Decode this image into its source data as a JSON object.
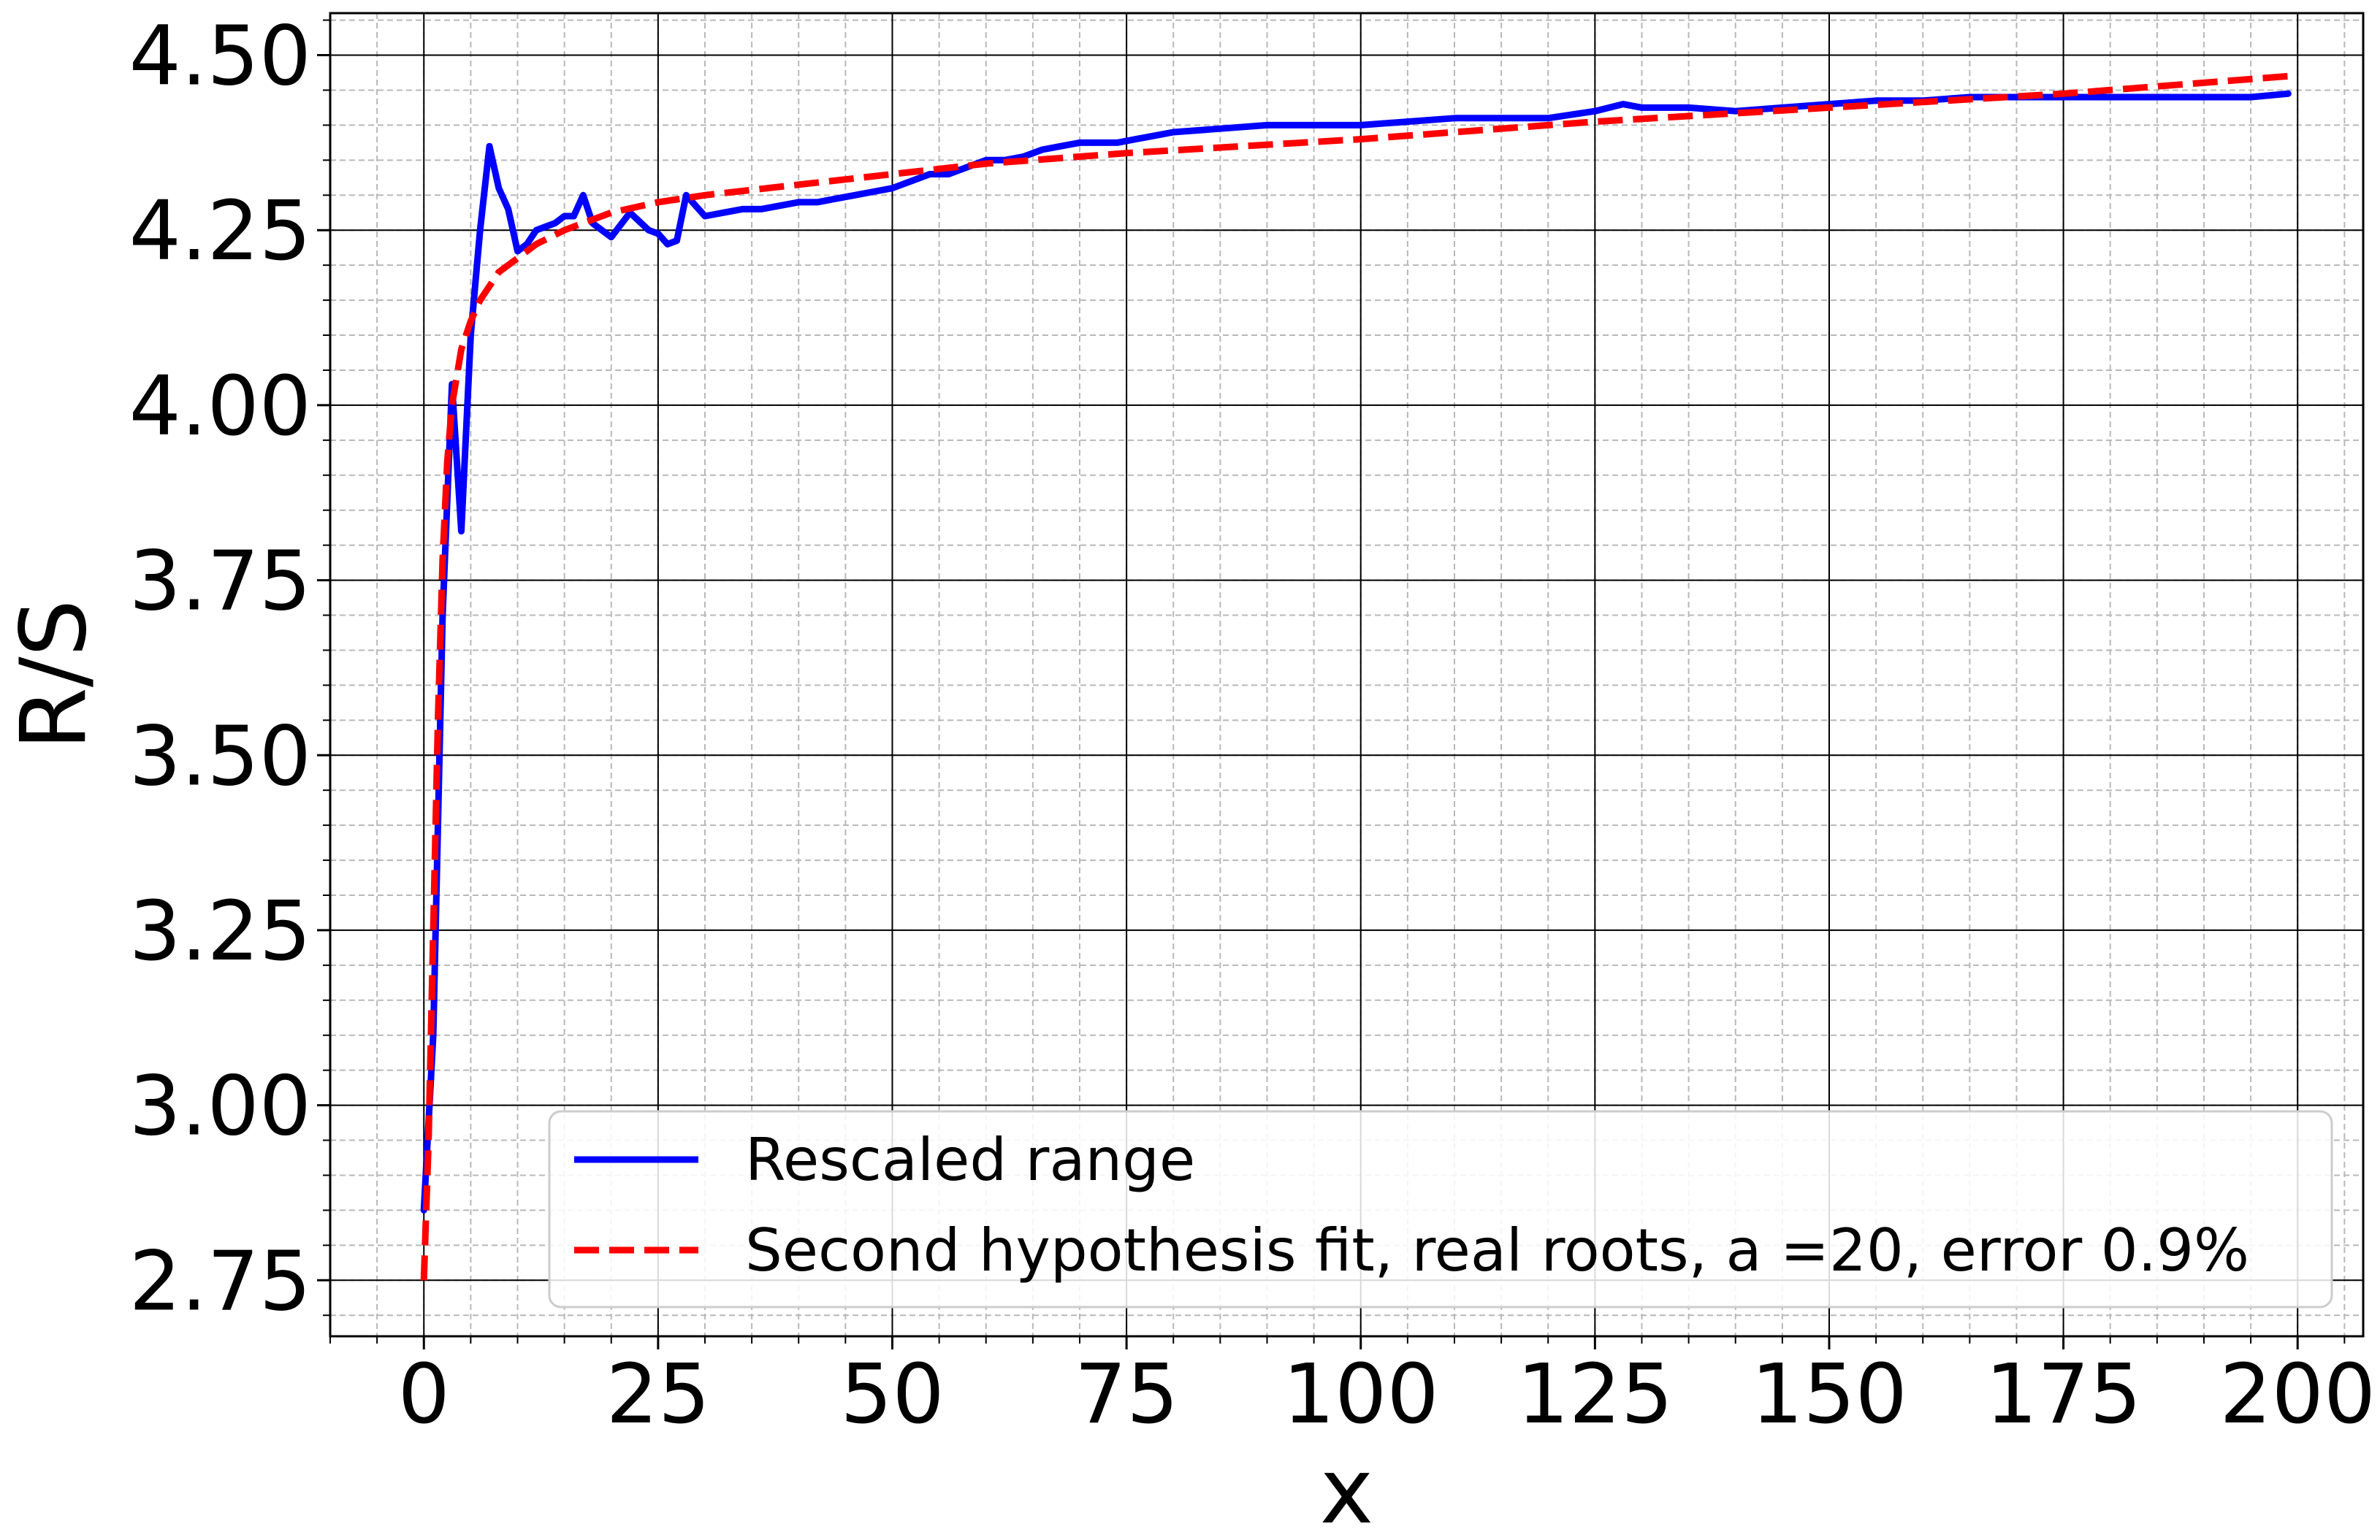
{
  "chart_data": {
    "type": "line",
    "title": "",
    "xlabel": "x",
    "ylabel": "R/S",
    "xlim": [
      -10,
      207
    ],
    "ylim": [
      2.67,
      4.56
    ],
    "xticks": [
      0,
      25,
      50,
      75,
      100,
      125,
      150,
      175,
      200
    ],
    "xtick_labels": [
      "0",
      "25",
      "50",
      "75",
      "100",
      "125",
      "150",
      "175",
      "200"
    ],
    "yticks": [
      2.75,
      3.0,
      3.25,
      3.5,
      3.75,
      4.0,
      4.25,
      4.5
    ],
    "ytick_labels": [
      "2.75",
      "3.00",
      "3.25",
      "3.50",
      "3.75",
      "4.00",
      "4.25",
      "4.50"
    ],
    "grid": "major and minor",
    "legend_position": "lower-right",
    "series": [
      {
        "name": "Rescaled range",
        "color": "#0000ff",
        "style": "solid",
        "x": [
          0,
          1,
          2,
          3,
          4,
          5,
          6,
          7,
          8,
          9,
          10,
          11,
          12,
          13,
          14,
          15,
          16,
          17,
          18,
          20,
          22,
          24,
          25,
          26,
          27,
          28,
          30,
          32,
          34,
          36,
          38,
          40,
          42,
          44,
          46,
          48,
          50,
          52,
          54,
          56,
          58,
          60,
          62,
          64,
          66,
          68,
          70,
          72,
          74,
          76,
          78,
          80,
          85,
          90,
          95,
          100,
          105,
          110,
          115,
          120,
          125,
          128,
          130,
          135,
          140,
          145,
          150,
          155,
          160,
          165,
          170,
          175,
          180,
          185,
          190,
          195,
          199
        ],
        "values": [
          2.85,
          3.1,
          3.7,
          4.03,
          3.82,
          4.1,
          4.25,
          4.37,
          4.31,
          4.28,
          4.22,
          4.23,
          4.25,
          4.255,
          4.26,
          4.27,
          4.27,
          4.3,
          4.26,
          4.24,
          4.275,
          4.25,
          4.245,
          4.23,
          4.235,
          4.3,
          4.27,
          4.275,
          4.28,
          4.28,
          4.285,
          4.29,
          4.29,
          4.295,
          4.3,
          4.305,
          4.31,
          4.32,
          4.33,
          4.33,
          4.34,
          4.35,
          4.35,
          4.355,
          4.365,
          4.37,
          4.375,
          4.375,
          4.375,
          4.38,
          4.385,
          4.39,
          4.395,
          4.4,
          4.4,
          4.4,
          4.405,
          4.41,
          4.41,
          4.41,
          4.42,
          4.43,
          4.425,
          4.425,
          4.42,
          4.425,
          4.43,
          4.435,
          4.435,
          4.44,
          4.44,
          4.44,
          4.44,
          4.44,
          4.44,
          4.44,
          4.445
        ]
      },
      {
        "name": "Second hypothesis fit, real roots, a =20, error 0.9%",
        "color": "#ff0000",
        "style": "dashed",
        "x": [
          0,
          0.5,
          1,
          1.5,
          2,
          2.5,
          3,
          4,
          5,
          6,
          7,
          8,
          10,
          12,
          15,
          20,
          25,
          30,
          40,
          50,
          60,
          75,
          100,
          125,
          150,
          175,
          199
        ],
        "values": [
          2.75,
          2.95,
          3.25,
          3.55,
          3.78,
          3.92,
          4.0,
          4.08,
          4.12,
          4.15,
          4.17,
          4.19,
          4.21,
          4.23,
          4.25,
          4.275,
          4.29,
          4.3,
          4.315,
          4.33,
          4.345,
          4.36,
          4.38,
          4.405,
          4.425,
          4.445,
          4.47
        ]
      }
    ]
  }
}
